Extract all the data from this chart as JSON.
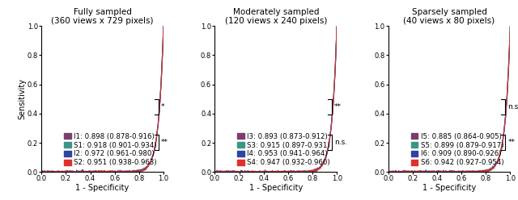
{
  "panels": [
    {
      "title": "Fully sampled\n(360 views x 729 pixels)",
      "curves": [
        {
          "label": "I1: 0.898 (0.878-0.916)",
          "color": "#7b3f6e",
          "auc": 0.898
        },
        {
          "label": "S1: 0.918 (0.901-0.934)",
          "color": "#3a9688",
          "auc": 0.918
        },
        {
          "label": "I2: 0.972 (0.961-0.980)",
          "color": "#3044a0",
          "auc": 0.972
        },
        {
          "label": "S2: 0.951 (0.938-0.963)",
          "color": "#e0302a",
          "auc": 0.951
        }
      ],
      "brackets": [
        {
          "rows": [
            0,
            1
          ],
          "symbol": "*"
        },
        {
          "rows": [
            2,
            3
          ],
          "symbol": "**"
        }
      ]
    },
    {
      "title": "Moderately sampled\n(120 views x 240 pixels)",
      "curves": [
        {
          "label": "I3: 0.893 (0.873-0.912)",
          "color": "#7b3f6e",
          "auc": 0.893
        },
        {
          "label": "S3: 0.915 (0.897-0.931)",
          "color": "#3a9688",
          "auc": 0.915
        },
        {
          "label": "I4: 0.953 (0.941-0.964)",
          "color": "#3044a0",
          "auc": 0.953
        },
        {
          "label": "S4: 0.947 (0.932-0.960)",
          "color": "#e0302a",
          "auc": 0.947
        }
      ],
      "brackets": [
        {
          "rows": [
            0,
            1
          ],
          "symbol": "**"
        },
        {
          "rows": [
            2,
            3
          ],
          "symbol": "n.s."
        }
      ]
    },
    {
      "title": "Sparsely sampled\n(40 views x 80 pixels)",
      "curves": [
        {
          "label": "I5: 0.885 (0.864-0.905)",
          "color": "#7b3f6e",
          "auc": 0.885
        },
        {
          "label": "S5: 0.899 (0.879-0.917)",
          "color": "#3a9688",
          "auc": 0.899
        },
        {
          "label": "I6: 0.909 (0.890-0.926)",
          "color": "#3044a0",
          "auc": 0.909
        },
        {
          "label": "S6: 0.942 (0.927-0.954)",
          "color": "#e0302a",
          "auc": 0.942
        }
      ],
      "brackets": [
        {
          "rows": [
            0,
            1
          ],
          "symbol": "n.s."
        },
        {
          "rows": [
            2,
            3
          ],
          "symbol": "**"
        }
      ]
    }
  ],
  "xlabel": "1 - Specificity",
  "ylabel": "Sensitivity",
  "legend_fontsize": 6.2,
  "title_fontsize": 7.5,
  "label_fontsize": 7,
  "tick_fontsize": 6
}
